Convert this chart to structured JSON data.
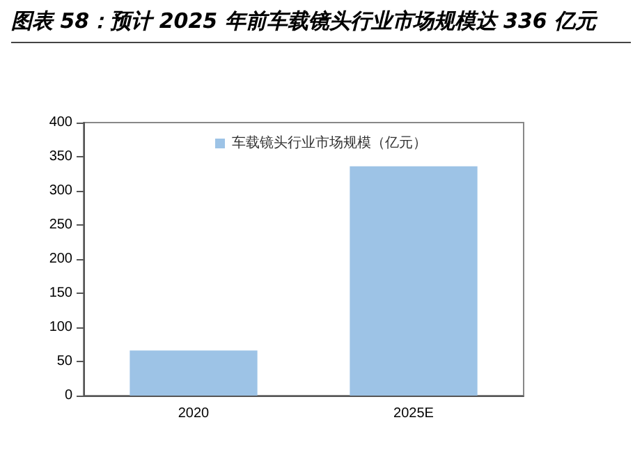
{
  "chart_data": {
    "type": "bar",
    "title": "图表 58：预计 2025 年前车载镜头行业市场规模达 336 亿元",
    "categories": [
      "2020",
      "2025E"
    ],
    "series": [
      {
        "name": "车载镜头行业市场规模（亿元）",
        "color": "#9dc3e6",
        "values": [
          66,
          336
        ]
      }
    ],
    "ylim": [
      0,
      400
    ],
    "yticks": [
      0,
      50,
      100,
      150,
      200,
      250,
      300,
      350,
      400
    ],
    "grid": false,
    "legend": "top"
  }
}
